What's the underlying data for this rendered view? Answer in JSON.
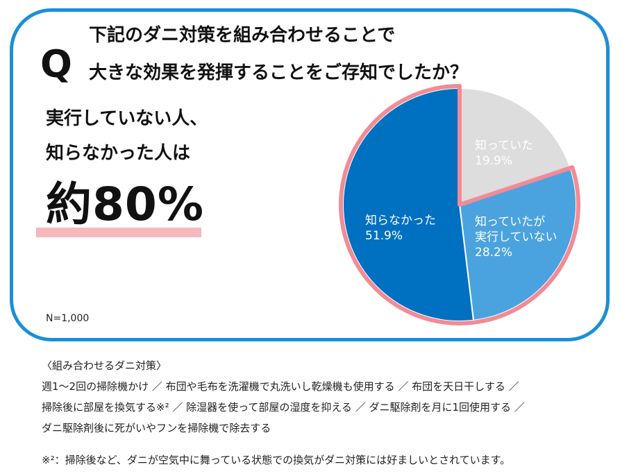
{
  "question": {
    "mark": "Q",
    "line1": "下記のダニ対策を組み合わせることで",
    "line2": "大きな効果を発揮することをご存知でしたか？"
  },
  "headline": {
    "line1": "実行していない人、",
    "line2": "知らなかった人は",
    "value": "約80%"
  },
  "sample_size": "N=1,000",
  "chart_data": {
    "type": "pie",
    "slices": [
      {
        "name": "知っていた",
        "label_lines": [
          "知っていた",
          "19.9%"
        ],
        "value": 19.9,
        "color": "#dddddd",
        "label_color": "#ffffff"
      },
      {
        "name": "知っていたが実行していない",
        "label_lines": [
          "知っていたが",
          "実行していない",
          "28.2%"
        ],
        "value": 28.2,
        "color": "#4aa3df",
        "label_color": "#ffffff"
      },
      {
        "name": "知らなかった",
        "label_lines": [
          "知らなかった",
          "51.9%"
        ],
        "value": 51.9,
        "color": "#0070c0",
        "label_color": "#ffffff"
      }
    ],
    "start": "12 o'clock",
    "direction": "clockwise",
    "highlight_outline_color": "#f28b95"
  },
  "footer": {
    "title": "〈組み合わせるダニ対策〉",
    "lines": [
      "週1～2回の掃除機かけ ／ 布団や毛布を洗濯機で丸洗いし乾燥機も使用する ／ 布団を天日干しする ／",
      "掃除後に部屋を換気する※² ／ 除湿器を使って部屋の湿度を抑える ／ ダニ駆除剤を月に1回使用する ／",
      "ダニ駆除剤後に死がいやフンを掃除機で除去する"
    ],
    "footnote": "※²：掃除後など、ダニが空気中に舞っている状態での換気がダニ対策には好ましいとされています。"
  },
  "colors": {
    "frame": "#1a8fd8",
    "highlight": "#f4b8bd"
  }
}
